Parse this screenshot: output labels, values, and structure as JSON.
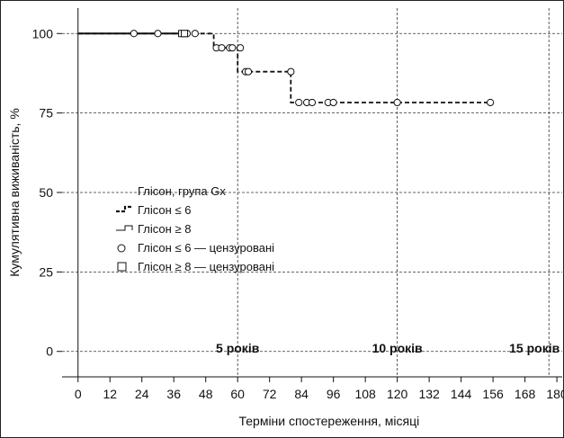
{
  "chart_data": {
    "type": "line",
    "title": "",
    "xlabel": "Терміни спостереження, місяці",
    "ylabel": "Кумулятивна виживаність, %",
    "xlim": [
      -6,
      182
    ],
    "ylim": [
      -8,
      108
    ],
    "xticks": [
      0,
      12,
      24,
      36,
      48,
      60,
      72,
      84,
      96,
      108,
      120,
      132,
      144,
      156,
      168,
      180
    ],
    "yticks": [
      0,
      25,
      50,
      75,
      100
    ],
    "grid": {
      "horizontal": [
        0,
        25,
        50,
        75,
        100
      ],
      "vertical": [
        60,
        120,
        177
      ]
    },
    "annotations": [
      {
        "text": "5 років",
        "x": 60
      },
      {
        "text": "10 років",
        "x": 120
      },
      {
        "text": "15 років",
        "x": 177
      }
    ],
    "legend": {
      "position": "center-left",
      "title": "Глісон, група Gx",
      "entries": [
        "Глісон ≤ 6",
        "Глісон ≥ 8",
        "Глісон ≤ 6 — цензуровані",
        "Глісон ≥ 8 — цензуровані"
      ]
    },
    "series": [
      {
        "name": "Глісон ≤ 6",
        "style": "dashed",
        "steps": [
          [
            0,
            100
          ],
          [
            51,
            100
          ],
          [
            51,
            95.5
          ],
          [
            60,
            95.5
          ],
          [
            60,
            88
          ],
          [
            80,
            88
          ],
          [
            80,
            78.3
          ],
          [
            156,
            78.3
          ]
        ],
        "censored": [
          [
            21,
            100
          ],
          [
            30,
            100
          ],
          [
            41,
            100
          ],
          [
            44,
            100
          ],
          [
            52,
            95.5
          ],
          [
            54,
            95.5
          ],
          [
            57,
            95.5
          ],
          [
            58,
            95.5
          ],
          [
            61,
            95.5
          ],
          [
            63,
            88
          ],
          [
            64,
            88
          ],
          [
            80,
            88
          ],
          [
            83,
            78.3
          ],
          [
            86,
            78.3
          ],
          [
            88,
            78.3
          ],
          [
            94,
            78.3
          ],
          [
            96,
            78.3
          ],
          [
            120,
            78.3
          ],
          [
            155,
            78.3
          ]
        ]
      },
      {
        "name": "Глісон ≥ 8",
        "style": "solid",
        "steps": [
          [
            0,
            100
          ],
          [
            41,
            100
          ]
        ],
        "censored": [
          [
            39,
            100
          ],
          [
            40,
            100
          ]
        ]
      }
    ]
  }
}
